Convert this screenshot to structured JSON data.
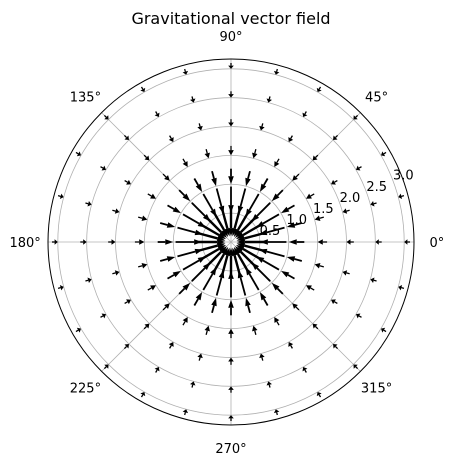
{
  "chart_data": {
    "type": "vector-field-polar",
    "title": "Gravitational vector field",
    "theta_tick_labels": [
      "0°",
      "45°",
      "90°",
      "135°",
      "180°",
      "225°",
      "270°",
      "315°"
    ],
    "theta_tick_angles_deg": [
      0,
      45,
      90,
      135,
      180,
      225,
      270,
      315
    ],
    "r_tick_labels": [
      "0.5",
      "1.0",
      "1.5",
      "2.0",
      "2.5",
      "3.0"
    ],
    "r_tick_values": [
      0.5,
      1.0,
      1.5,
      2.0,
      2.5,
      3.0
    ],
    "rlim": [
      0,
      3.17
    ],
    "grid": true,
    "field": {
      "direction": "radially inward",
      "magnitude_law": "1 / r^2",
      "radii": [
        0.1,
        0.5,
        1.0,
        1.5,
        2.0,
        2.5,
        3.0
      ],
      "theta_step_deg": 15
    },
    "colors": {
      "arrow": "#000000",
      "grid": "#b0b0b0",
      "spine": "#000000"
    }
  }
}
